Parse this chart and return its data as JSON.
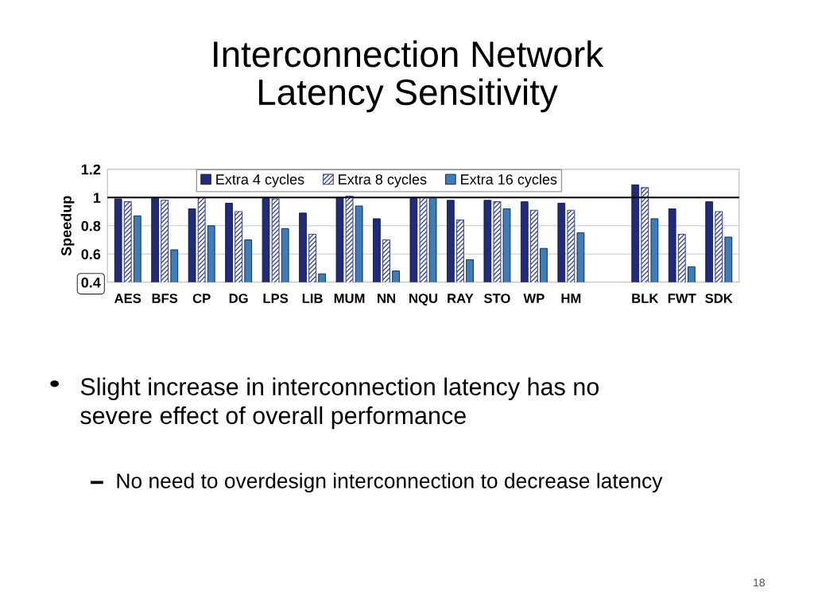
{
  "chart_data": {
    "type": "bar",
    "title": "Interconnection Network\nLatency Sensitivity",
    "ylabel": "Speedup",
    "categories": [
      "AES",
      "BFS",
      "CP",
      "DG",
      "LPS",
      "LIB",
      "MUM",
      "NN",
      "NQU",
      "RAY",
      "STO",
      "WP",
      "HM",
      null,
      "BLK",
      "FWT",
      "SDK"
    ],
    "series": [
      {
        "name": "Extra 4 cycles",
        "color": "#1f2b7e",
        "values": [
          0.99,
          1.0,
          0.92,
          0.96,
          1.0,
          0.89,
          1.0,
          0.85,
          1.0,
          0.98,
          0.98,
          0.97,
          0.96,
          null,
          1.09,
          0.92,
          0.97
        ]
      },
      {
        "name": "Extra 8 cycles",
        "color": "#3a4a94",
        "values": [
          0.97,
          0.98,
          1.0,
          0.9,
          0.99,
          0.74,
          1.01,
          0.7,
          1.0,
          0.84,
          0.97,
          0.91,
          0.91,
          null,
          1.07,
          0.74,
          0.9
        ]
      },
      {
        "name": "Extra 16 cycles",
        "color": "#3c7dbd",
        "values": [
          0.87,
          0.63,
          0.8,
          0.7,
          0.78,
          0.46,
          0.94,
          0.48,
          1.0,
          0.56,
          0.92,
          0.64,
          0.75,
          null,
          0.85,
          0.51,
          0.72
        ]
      }
    ],
    "ylim": [
      0.4,
      1.2
    ],
    "yticks": [
      0.4,
      0.6,
      0.8,
      1,
      1.2
    ],
    "ref_lines": [
      {
        "axis": "y",
        "value": 1,
        "color": "#000000"
      }
    ],
    "grid": "y",
    "legend": "top",
    "annotations": [
      "Slight increase in interconnection latency has no\nsevere effect of overall performance",
      "No need to overdesign interconnection to decrease latency",
      "18"
    ]
  }
}
